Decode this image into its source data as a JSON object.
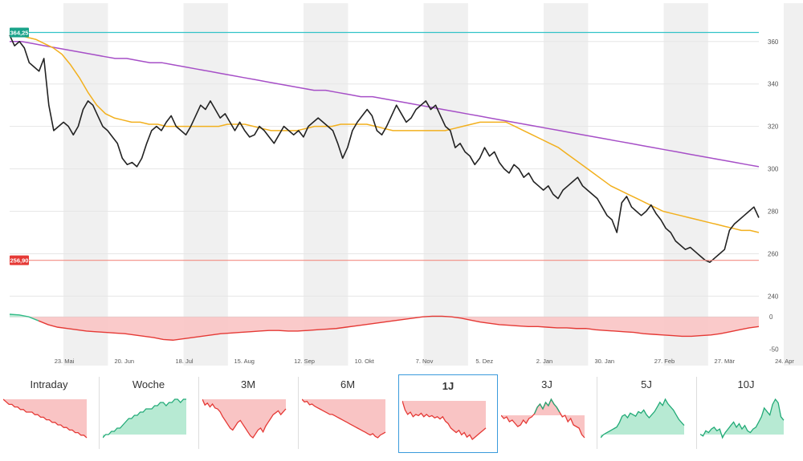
{
  "chart_data": {
    "type": "line",
    "y_axis": {
      "ticks": [
        360,
        340,
        320,
        300,
        280,
        260,
        240
      ],
      "min": 236,
      "max": 372
    },
    "x_ticks": [
      "23. Mai",
      "20. Jun",
      "18. Jul",
      "15. Aug",
      "12. Sep",
      "10. Okt",
      "7. Nov",
      "5. Dez",
      "2. Jan",
      "30. Jan",
      "27. Feb",
      "27. Mär",
      "24. Apr"
    ],
    "reference_lines": [
      {
        "label": "364,25",
        "value": 364.25,
        "color": "#33c3c8",
        "badge_color": "#1aa38a"
      },
      {
        "label": "256,90",
        "value": 256.9,
        "color": "#f28b82",
        "badge_color": "#e53935"
      }
    ],
    "series": [
      {
        "color": "#222222",
        "values": [
          363,
          358,
          360,
          357,
          350,
          348,
          346,
          352,
          330,
          318,
          320,
          322,
          320,
          316,
          320,
          328,
          332,
          330,
          325,
          320,
          318,
          315,
          312,
          305,
          302,
          303,
          301,
          305,
          312,
          318,
          320,
          318,
          322,
          325,
          320,
          318,
          316,
          320,
          325,
          330,
          328,
          332,
          328,
          324,
          326,
          322,
          318,
          322,
          318,
          315,
          316,
          320,
          318,
          315,
          312,
          316,
          320,
          318,
          316,
          318,
          315,
          320,
          322,
          324,
          322,
          320,
          318,
          312,
          305,
          310,
          318,
          322,
          325,
          328,
          325,
          318,
          316,
          320,
          325,
          330,
          326,
          322,
          324,
          328,
          330,
          332,
          328,
          330,
          325,
          320,
          318,
          310,
          312,
          308,
          306,
          302,
          305,
          310,
          306,
          308,
          303,
          300,
          298,
          302,
          300,
          296,
          298,
          294,
          292,
          290,
          292,
          288,
          286,
          290,
          292,
          294,
          296,
          292,
          290,
          288,
          286,
          282,
          278,
          276,
          270,
          284,
          287,
          282,
          280,
          278,
          280,
          283,
          279,
          276,
          272,
          270,
          266,
          264,
          262,
          263,
          261,
          259,
          257,
          256,
          258,
          260,
          262,
          271,
          274,
          276,
          278,
          280,
          282,
          277
        ]
      },
      {
        "color": "#f2b01e",
        "values": [
          364,
          363,
          362,
          361,
          359,
          357,
          354,
          349,
          343,
          336,
          330,
          326,
          324,
          323,
          322,
          322,
          321,
          321,
          320,
          320,
          320,
          320,
          320,
          320,
          320,
          321,
          321,
          321,
          320,
          319,
          318,
          318,
          318,
          318,
          319,
          320,
          320,
          320,
          321,
          321,
          321,
          321,
          320,
          319,
          318,
          318,
          318,
          318,
          318,
          318,
          318,
          319,
          320,
          321,
          322,
          322,
          322,
          322,
          320,
          318,
          316,
          314,
          312,
          310,
          307,
          304,
          301,
          298,
          295,
          292,
          290,
          288,
          286,
          284,
          282,
          280,
          279,
          278,
          277,
          276,
          275,
          274,
          273,
          272,
          271,
          271,
          270
        ]
      },
      {
        "color": "#a64fc7",
        "values": [
          360,
          360,
          359,
          358,
          357,
          356,
          355,
          354,
          353,
          352,
          352,
          351,
          350,
          350,
          349,
          348,
          347,
          346,
          345,
          344,
          343,
          342,
          341,
          340,
          339,
          338,
          337,
          337,
          336,
          335,
          334,
          334,
          333,
          332,
          331,
          330,
          329,
          328,
          327,
          326,
          325,
          324,
          323,
          322,
          321,
          320,
          319,
          318,
          317,
          316,
          315,
          314,
          313,
          312,
          311,
          310,
          309,
          308,
          307,
          306,
          305,
          304,
          303,
          302,
          301
        ]
      }
    ],
    "oscillator": {
      "y_ticks": [
        0,
        -50
      ],
      "min": -58,
      "max": 4,
      "values": [
        4,
        3,
        0,
        -6,
        -12,
        -16,
        -18,
        -20,
        -22,
        -23,
        -24,
        -25,
        -26,
        -28,
        -30,
        -32,
        -35,
        -36,
        -34,
        -32,
        -30,
        -28,
        -26,
        -25,
        -24,
        -23,
        -22,
        -21,
        -21,
        -22,
        -22,
        -21,
        -20,
        -19,
        -18,
        -16,
        -14,
        -12,
        -10,
        -8,
        -6,
        -4,
        -2,
        0,
        1,
        1,
        0,
        -2,
        -5,
        -8,
        -10,
        -12,
        -13,
        -14,
        -15,
        -15,
        -16,
        -17,
        -17,
        -18,
        -18,
        -20,
        -21,
        -22,
        -23,
        -24,
        -26,
        -27,
        -28,
        -29,
        -30,
        -30,
        -29,
        -28,
        -26,
        -23,
        -20,
        -17,
        -15
      ]
    }
  },
  "tabs": [
    {
      "label": "Intraday",
      "trend": "down",
      "active": false,
      "values": [
        8,
        7,
        6,
        6,
        5,
        5,
        4,
        4,
        3,
        3,
        3,
        2,
        2,
        1,
        1,
        0,
        0,
        -1,
        -1,
        -2,
        -2,
        -3,
        -3,
        -4,
        -4,
        -5,
        -5,
        -6,
        -6,
        -7
      ]
    },
    {
      "label": "Woche",
      "trend": "up",
      "active": false,
      "values": [
        0,
        1,
        1,
        2,
        2,
        3,
        3,
        4,
        5,
        6,
        6,
        7,
        7,
        8,
        8,
        9,
        9,
        9,
        10,
        10,
        11,
        11,
        10,
        11,
        11,
        12,
        12,
        11,
        12,
        12
      ]
    },
    {
      "label": "3M",
      "trend": "down",
      "active": false,
      "values": [
        10,
        4,
        6,
        2,
        5,
        1,
        0,
        -3,
        -8,
        -12,
        -16,
        -20,
        -22,
        -18,
        -14,
        -12,
        -16,
        -20,
        -24,
        -28,
        -30,
        -26,
        -22,
        -20,
        -24,
        -18,
        -14,
        -10,
        -6,
        -4,
        -2,
        -6,
        -3,
        0
      ]
    },
    {
      "label": "6M",
      "trend": "down",
      "active": false,
      "values": [
        10,
        6,
        7,
        2,
        3,
        0,
        -2,
        -4,
        -6,
        -8,
        -10,
        -12,
        -12,
        -14,
        -16,
        -18,
        -20,
        -22,
        -24,
        -26,
        -28,
        -30,
        -32,
        -34,
        -36,
        -38,
        -40,
        -42,
        -40,
        -44,
        -46,
        -42,
        -40,
        -38
      ]
    },
    {
      "label": "1J",
      "trend": "down",
      "active": true,
      "values": [
        4,
        -4,
        -8,
        -6,
        -10,
        -8,
        -9,
        -7,
        -10,
        -8,
        -10,
        -9,
        -11,
        -10,
        -12,
        -10,
        -14,
        -16,
        -20,
        -22,
        -24,
        -22,
        -26,
        -24,
        -28,
        -26,
        -30,
        -28,
        -26,
        -24,
        -22,
        -20
      ]
    },
    {
      "label": "3J",
      "trend": "mixed",
      "active": false,
      "values": [
        -6,
        -10,
        -8,
        -14,
        -12,
        -16,
        -20,
        -18,
        -12,
        -16,
        -10,
        -8,
        -4,
        4,
        8,
        2,
        10,
        6,
        14,
        8,
        4,
        -2,
        -8,
        -6,
        -14,
        -10,
        -18,
        -20,
        -22,
        -30,
        -34
      ]
    },
    {
      "label": "5J",
      "trend": "up",
      "active": false,
      "values": [
        0,
        4,
        6,
        8,
        10,
        12,
        14,
        20,
        28,
        30,
        26,
        32,
        30,
        28,
        34,
        32,
        36,
        30,
        26,
        30,
        34,
        40,
        46,
        42,
        50,
        44,
        40,
        36,
        30,
        24,
        20,
        16
      ]
    },
    {
      "label": "10J",
      "trend": "up",
      "active": false,
      "values": [
        0,
        -2,
        4,
        2,
        6,
        8,
        4,
        6,
        -4,
        2,
        6,
        10,
        14,
        8,
        12,
        6,
        10,
        4,
        2,
        6,
        8,
        14,
        20,
        30,
        26,
        22,
        34,
        40,
        36,
        20,
        16
      ]
    }
  ]
}
